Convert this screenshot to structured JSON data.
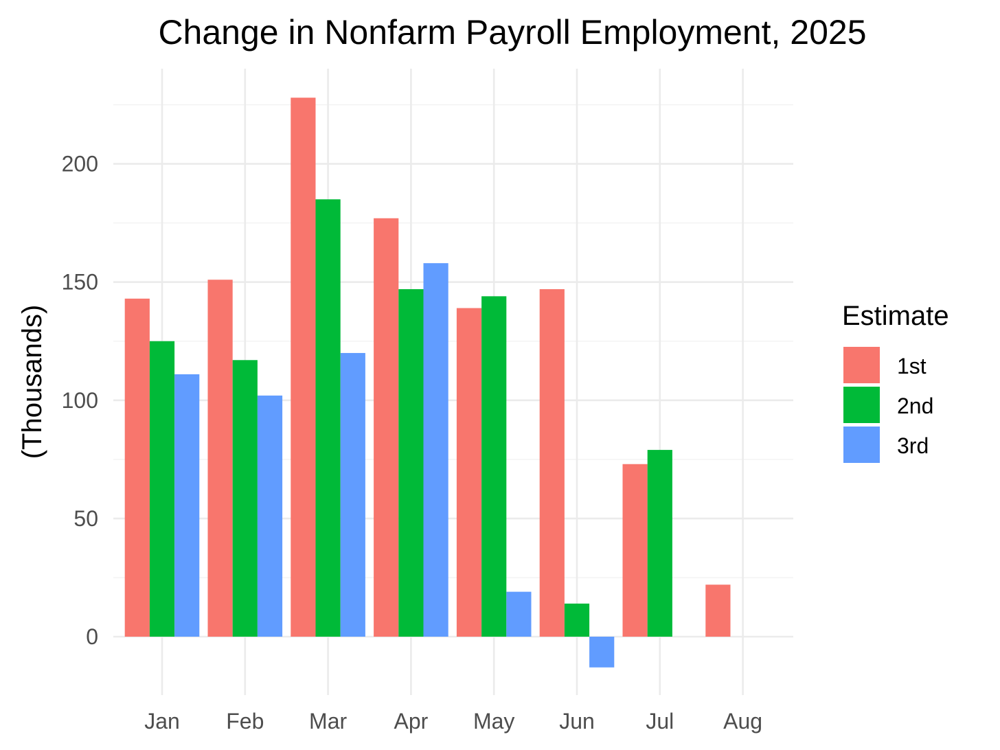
{
  "chart_data": {
    "type": "bar",
    "title": "Change in Nonfarm Payroll Employment, 2025",
    "xlabel": "",
    "ylabel": "(Thousands)",
    "categories": [
      "Jan",
      "Feb",
      "Mar",
      "Apr",
      "May",
      "Jun",
      "Jul",
      "Aug"
    ],
    "series": [
      {
        "name": "1st",
        "color": "#F8766D",
        "values": [
          143,
          151,
          228,
          177,
          139,
          147,
          73,
          22
        ]
      },
      {
        "name": "2nd",
        "color": "#00BA38",
        "values": [
          125,
          117,
          185,
          147,
          144,
          14,
          79,
          null
        ]
      },
      {
        "name": "3rd",
        "color": "#619CFF",
        "values": [
          111,
          102,
          120,
          158,
          19,
          -13,
          null,
          null
        ]
      }
    ],
    "ylim": [
      -25,
      240
    ],
    "yticks": [
      0,
      50,
      100,
      150,
      200
    ],
    "grid": true,
    "legend": {
      "title": "Estimate",
      "position": "right"
    }
  }
}
